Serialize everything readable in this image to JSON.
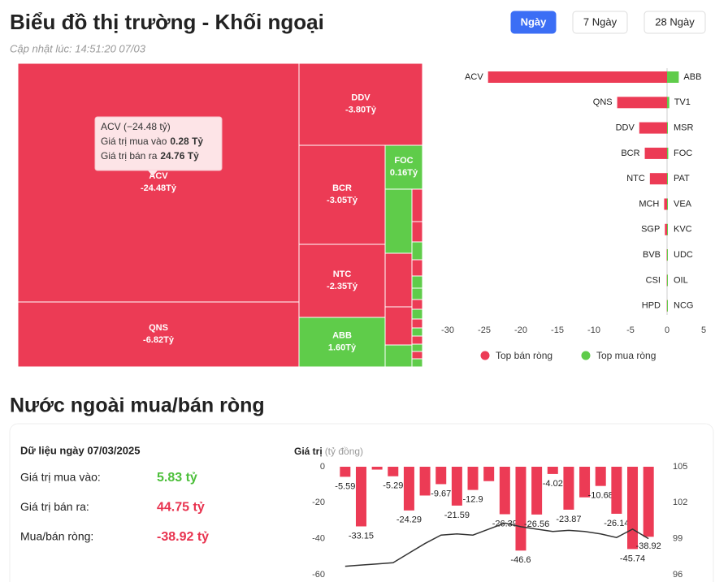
{
  "header": {
    "title": "Biểu đồ thị trường - Khối ngoại",
    "updated": "Cập nhật lúc: 14:51:20 07/03",
    "buttons": [
      "Ngày",
      "7 Ngày",
      "28 Ngày"
    ],
    "active_button": 0
  },
  "chart_data": [
    {
      "type": "treemap",
      "categories": [
        "ACV",
        "QNS",
        "DDV",
        "BCR",
        "NTC",
        "ABB",
        "FOC"
      ],
      "values": [
        -24.48,
        -6.82,
        -3.8,
        -3.05,
        -2.35,
        1.6,
        0.16
      ],
      "value_labels": [
        "-24.48Tỷ",
        "-6.82Tỷ",
        "-3.80Tỷ",
        "-3.05Tỷ",
        "-2.35Tỷ",
        "1.60Tỷ",
        "0.16Tỷ"
      ],
      "colors": [
        "#ec3b55",
        "#ec3b55",
        "#ec3b55",
        "#ec3b55",
        "#ec3b55",
        "#5fcc4a",
        "#5fcc4a"
      ],
      "tooltip": {
        "title": "ACV (−24.48 tỷ)",
        "buy_label": "Giá trị mua vào",
        "buy_value": "0.28 Tỷ",
        "sell_label": "Giá trị bán ra",
        "sell_value": "24.76 Tỷ"
      }
    },
    {
      "type": "diverging_bar",
      "series": [
        {
          "name": "Top bán ròng",
          "color": "#ec3b55",
          "categories": [
            "ACV",
            "QNS",
            "DDV",
            "BCR",
            "NTC",
            "MCH",
            "SGP",
            "BVB",
            "CSI",
            "HPD"
          ],
          "values": [
            -24.48,
            -6.82,
            -3.8,
            -3.05,
            -2.35,
            -0.4,
            -0.3,
            -0.05,
            -0.04,
            -0.03
          ]
        },
        {
          "name": "Top mua ròng",
          "color": "#5fcc4a",
          "categories": [
            "ABB",
            "TV1",
            "MSR",
            "FOC",
            "PAT",
            "VEA",
            "KVC",
            "UDC",
            "OIL",
            "NCG"
          ],
          "values": [
            1.6,
            0.3,
            0.1,
            0.16,
            0.1,
            0.05,
            0.05,
            0.03,
            0.02,
            0.01
          ]
        }
      ],
      "xlim": [
        -30,
        5
      ],
      "xticks": [
        -30,
        -25,
        -20,
        -15,
        -10,
        -5,
        0,
        5
      ],
      "legend": "bottom"
    },
    {
      "type": "bar_line",
      "ylabel": "Giá trị",
      "ylabel_unit": "(tỷ đồng)",
      "ylim": [
        -60,
        0
      ],
      "yticks": [
        0,
        -20,
        -40,
        -60
      ],
      "y2lim": [
        96,
        105
      ],
      "y2ticks": [
        105,
        102,
        99,
        96
      ],
      "series": [
        {
          "type": "bar",
          "color": "#ec3b55",
          "values": [
            -5.59,
            -33.15,
            -1.6,
            -5.29,
            -24.29,
            -16,
            -9.67,
            -21.59,
            -12.9,
            -8,
            -26.39,
            -46.6,
            -26.56,
            -4.02,
            -23.87,
            -17,
            -10.68,
            -26.14,
            -45.74,
            -38.92
          ],
          "value_labels": [
            "-5.59",
            "-33.15",
            null,
            "-5.29",
            "-24.29",
            null,
            "-9.67",
            "-21.59",
            "-12.9",
            null,
            "-26.39",
            "-46.6",
            "-26.56",
            "-4.02",
            "-23.87",
            null,
            "-10.68",
            "-26.14",
            "-45.74",
            "-38.92"
          ]
        },
        {
          "type": "line",
          "axis": "y2",
          "color": "#333333",
          "values": [
            96.7,
            96.8,
            96.9,
            97.0,
            97.8,
            98.6,
            99.3,
            99.4,
            99.3,
            99.8,
            100.3,
            100.0,
            99.8,
            99.6,
            99.7,
            99.6,
            99.4,
            99.1,
            99.8,
            99.0
          ]
        }
      ]
    }
  ],
  "summary": {
    "section_title": "Nước ngoài mua/bán ròng",
    "date_label": "Dữ liệu ngày 07/03/2025",
    "rows": [
      {
        "label": "Giá trị mua vào:",
        "value": "5.83 tỷ",
        "color": "#4cbf3a"
      },
      {
        "label": "Giá trị bán ra:",
        "value": "44.75 tỷ",
        "color": "#e8334f"
      },
      {
        "label": "Mua/bán ròng:",
        "value": "-38.92 tỷ",
        "color": "#e8334f"
      }
    ]
  }
}
